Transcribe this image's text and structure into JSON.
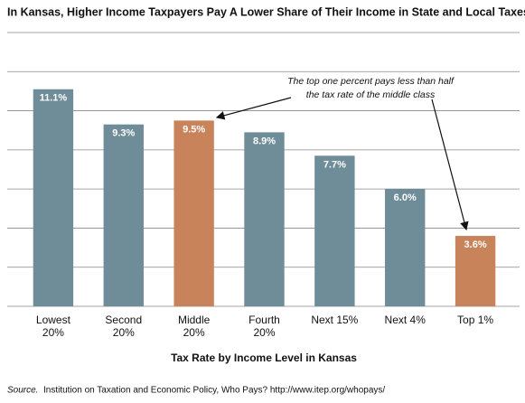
{
  "chart_data": {
    "type": "bar",
    "title": "In Kansas, Higher Income Taxpayers Pay A Lower Share of Their Income in State and Local Taxes",
    "categories": [
      [
        "Lowest",
        "20%"
      ],
      [
        "Second",
        "20%"
      ],
      [
        "Middle",
        "20%"
      ],
      [
        "Fourth",
        "20%"
      ],
      [
        "Next 15%"
      ],
      [
        "Next 4%"
      ],
      [
        "Top 1%"
      ]
    ],
    "values": [
      11.1,
      9.3,
      9.5,
      8.9,
      7.7,
      6.0,
      3.6
    ],
    "value_labels": [
      "11.1%",
      "9.3%",
      "9.5%",
      "8.9%",
      "7.7%",
      "6.0%",
      "3.6%"
    ],
    "colors": [
      "#6f8c99",
      "#6f8c99",
      "#c8835a",
      "#6f8c99",
      "#6f8c99",
      "#6f8c99",
      "#c8835a"
    ],
    "ylim": [
      0,
      14
    ],
    "yticks": [
      0,
      2,
      4,
      6,
      8,
      10,
      12,
      14
    ],
    "grid": true,
    "x_label": "Tax Rate by Income Level in Kansas",
    "annotation": [
      "The top one percent pays  less than half",
      "the tax rate of the middle class"
    ],
    "source_label": "Source.",
    "source": "Institution on Taxation and Economic Policy, Who Pays? http://www.itep.org/whopays/"
  }
}
